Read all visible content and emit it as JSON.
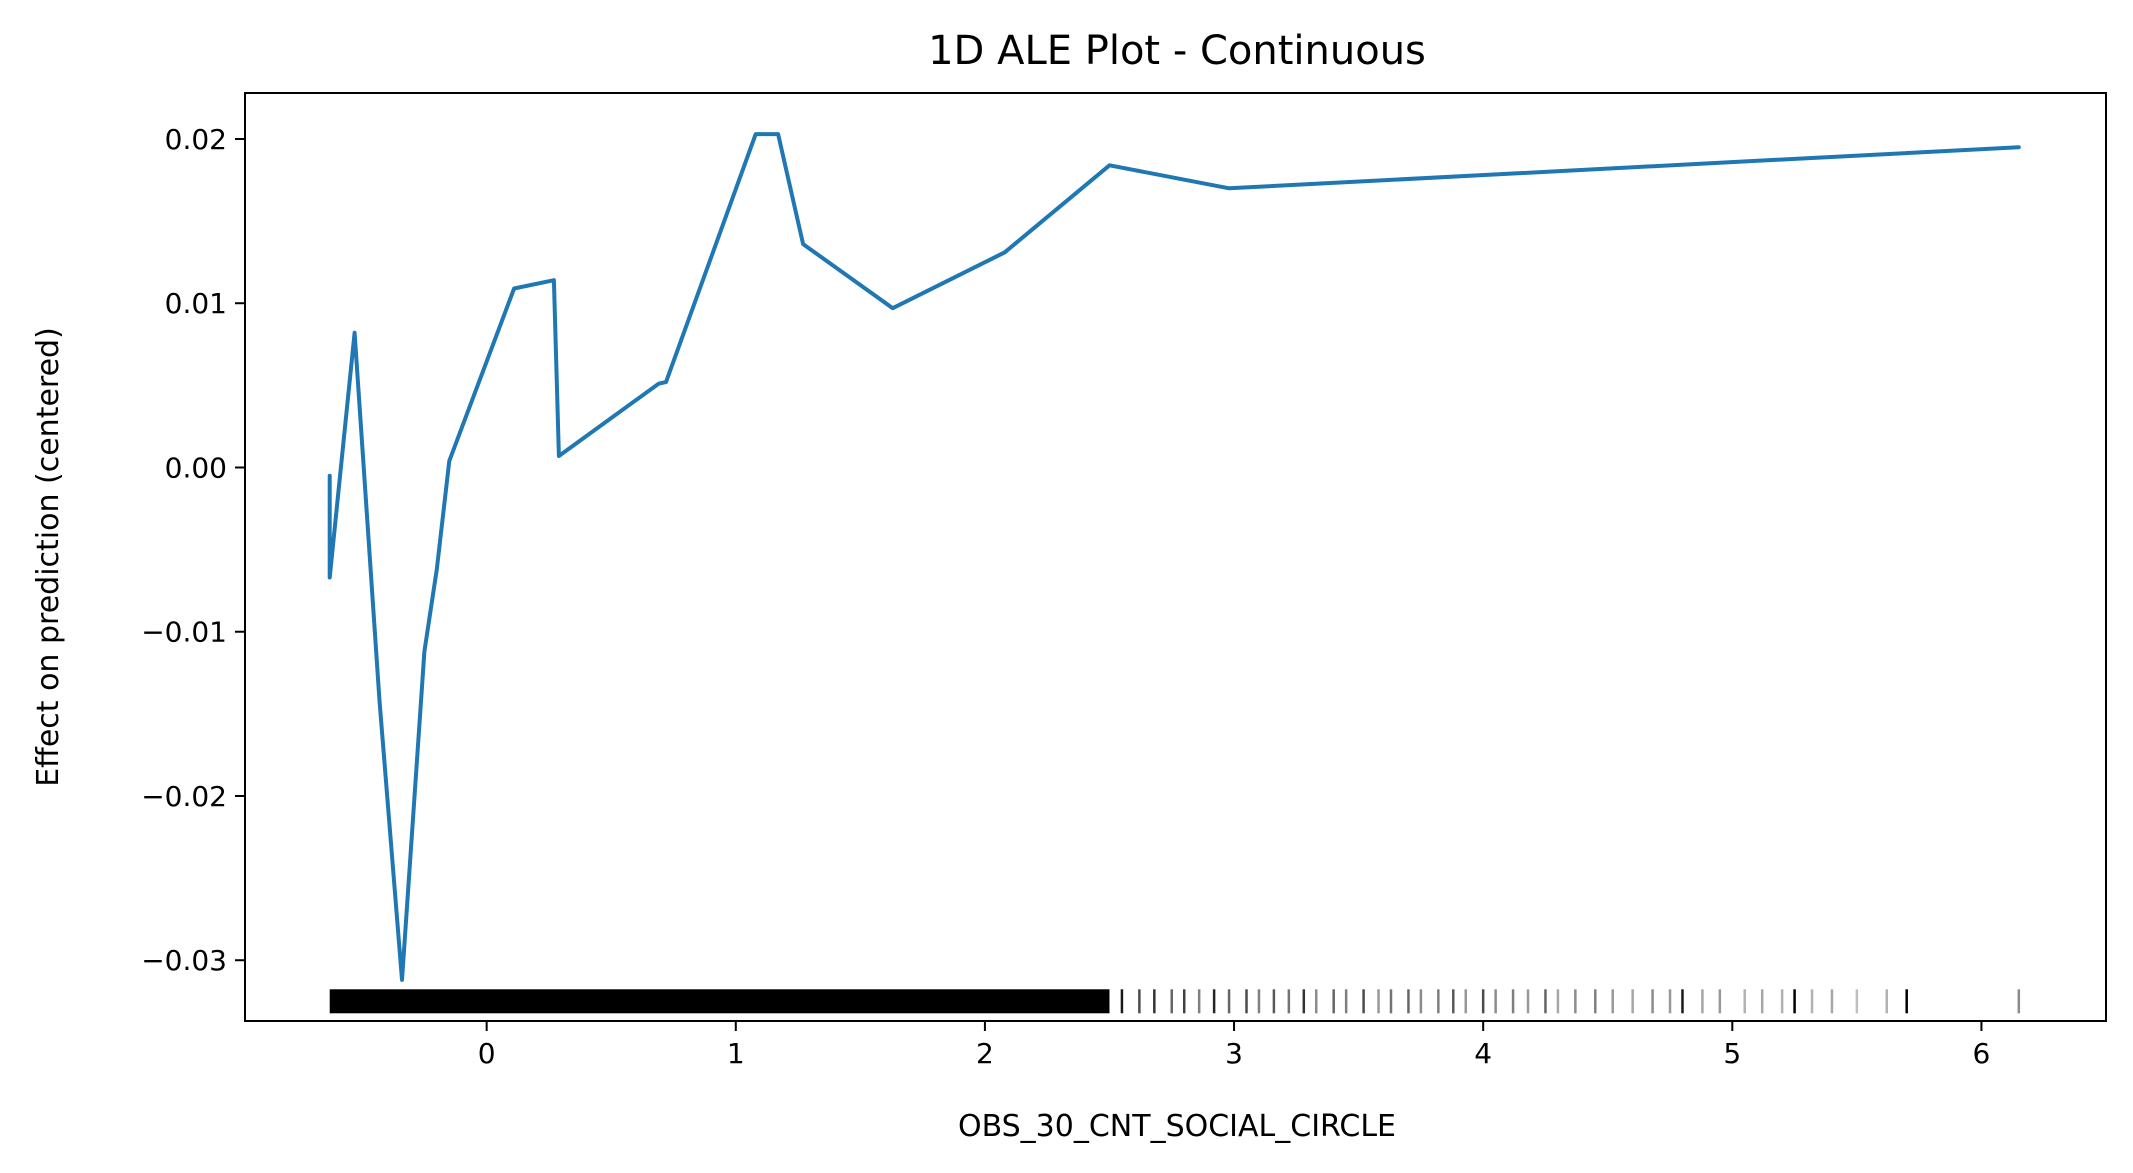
{
  "chart_data": {
    "type": "line",
    "title": "1D ALE Plot - Continuous",
    "xlabel": "OBS_30_CNT_SOCIAL_CIRCLE",
    "ylabel": "Effect on prediction (centered)",
    "xlim": [
      -0.97,
      6.5
    ],
    "ylim": [
      -0.0337,
      0.0228
    ],
    "xticks": [
      0,
      1,
      2,
      3,
      4,
      5,
      6
    ],
    "xtick_labels": [
      "0",
      "1",
      "2",
      "3",
      "4",
      "5",
      "6"
    ],
    "yticks": [
      -0.03,
      -0.02,
      -0.01,
      0.0,
      0.01,
      0.02
    ],
    "ytick_labels": [
      "−0.03",
      "−0.02",
      "−0.01",
      "0.00",
      "0.01",
      "0.02"
    ],
    "grid": false,
    "series": [
      {
        "color": "#1f77b4",
        "x": [
          -0.63,
          -0.63,
          -0.53,
          -0.43,
          -0.34,
          -0.25,
          -0.2,
          -0.15,
          0.11,
          0.27,
          0.29,
          0.69,
          0.72,
          1.08,
          1.17,
          1.27,
          1.63,
          2.08,
          2.5,
          2.98,
          6.15
        ],
        "y": [
          -0.0005,
          -0.0067,
          0.0082,
          -0.0142,
          -0.0312,
          -0.0112,
          -0.0062,
          0.0004,
          0.0109,
          0.0114,
          0.0007,
          0.0051,
          0.0052,
          0.0203,
          0.0203,
          0.0136,
          0.0097,
          0.0131,
          0.0184,
          0.017,
          0.0195
        ]
      }
    ],
    "rug": {
      "color": "#000000",
      "y_center": -0.0325,
      "dense_range": [
        -0.63,
        2.5
      ],
      "sparse_x": [
        2.55,
        2.62,
        2.68,
        2.75,
        2.8,
        2.86,
        2.92,
        2.98,
        3.05,
        3.1,
        3.16,
        3.22,
        3.28,
        3.33,
        3.4,
        3.45,
        3.52,
        3.58,
        3.63,
        3.7,
        3.75,
        3.82,
        3.88,
        3.93,
        4.0,
        4.05,
        4.12,
        4.18,
        4.25,
        4.3,
        4.37,
        4.45,
        4.52,
        4.6,
        4.68,
        4.75,
        4.8,
        4.88,
        4.95,
        5.05,
        5.12,
        5.2,
        5.25,
        5.32,
        5.4,
        5.5,
        5.62,
        5.7,
        6.15
      ],
      "sparse_opacity": [
        0.9,
        0.7,
        0.8,
        0.6,
        0.75,
        0.5,
        0.85,
        0.6,
        0.7,
        0.5,
        0.65,
        0.55,
        0.8,
        0.45,
        0.6,
        0.5,
        0.7,
        0.4,
        0.55,
        0.6,
        0.45,
        0.5,
        0.65,
        0.4,
        0.7,
        0.45,
        0.5,
        0.4,
        0.6,
        0.35,
        0.45,
        0.5,
        0.4,
        0.35,
        0.45,
        0.4,
        0.9,
        0.35,
        0.4,
        0.3,
        0.35,
        0.3,
        1.0,
        0.3,
        0.35,
        0.25,
        0.3,
        1.0,
        0.45
      ]
    }
  }
}
